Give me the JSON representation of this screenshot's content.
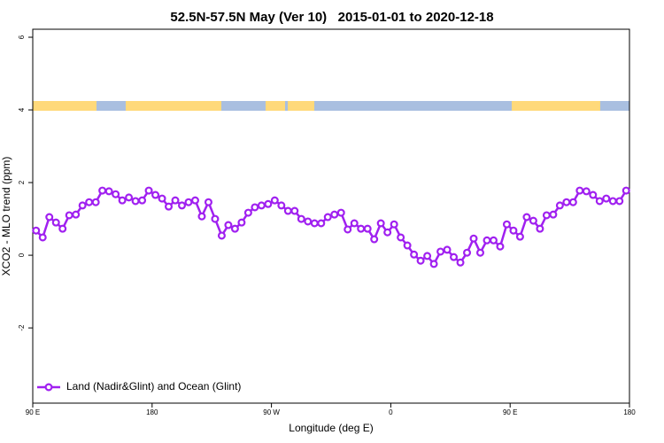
{
  "chart_data": {
    "type": "line",
    "title": "52.5N-57.5N May (Ver 10)   2015-01-01 to 2020-12-18",
    "x_label": "Longitude (deg E)",
    "y_label": "XCO2 - MLO trend (ppm)",
    "x": [
      92.5,
      97.5,
      102.5,
      107.5,
      112.5,
      117.5,
      122.5,
      127.5,
      132.5,
      137.5,
      142.5,
      147.5,
      152.5,
      157.5,
      162.5,
      167.5,
      172.5,
      177.5,
      182.5,
      187.5,
      192.5,
      197.5,
      202.5,
      207.5,
      212.5,
      217.5,
      222.5,
      227.5,
      232.5,
      237.5,
      242.5,
      247.5,
      252.5,
      257.5,
      262.5,
      267.5,
      272.5,
      277.5,
      282.5,
      287.5,
      292.5,
      297.5,
      302.5,
      307.5,
      312.5,
      317.5,
      322.5,
      327.5,
      332.5,
      337.5,
      342.5,
      347.5,
      352.5,
      357.5,
      362.5,
      367.5,
      372.5,
      377.5,
      382.5,
      387.5,
      392.5,
      397.5,
      402.5,
      407.5,
      412.5,
      417.5,
      422.5,
      427.5,
      432.5,
      437.5,
      442.5,
      447.5,
      452.5,
      457.5,
      462.5,
      467.5,
      472.5,
      477.5,
      482.5,
      487.5,
      492.5,
      497.5,
      502.5,
      507.5,
      512.5,
      517.5,
      522.5,
      527.5,
      532.5,
      537.5
    ],
    "series": [
      {
        "name": "Land (Nadir&Glint) and Ocean (Glint)",
        "color": "#a020f0",
        "values": [
          0.68,
          0.49,
          1.05,
          0.9,
          0.73,
          1.1,
          1.12,
          1.37,
          1.46,
          1.46,
          1.78,
          1.76,
          1.68,
          1.51,
          1.59,
          1.49,
          1.51,
          1.78,
          1.66,
          1.56,
          1.34,
          1.51,
          1.37,
          1.46,
          1.51,
          1.07,
          1.46,
          1.0,
          0.54,
          0.83,
          0.73,
          0.9,
          1.17,
          1.32,
          1.37,
          1.41,
          1.51,
          1.37,
          1.22,
          1.22,
          1.0,
          0.93,
          0.88,
          0.88,
          1.05,
          1.12,
          1.17,
          0.71,
          0.88,
          0.73,
          0.73,
          0.44,
          0.88,
          0.63,
          0.85,
          0.49,
          0.27,
          0.02,
          -0.15,
          -0.02,
          -0.24,
          0.1,
          0.15,
          -0.05,
          -0.2,
          0.07,
          0.46,
          0.07,
          0.41,
          0.41,
          0.24,
          0.85,
          0.68,
          0.51,
          1.05,
          0.95,
          0.73,
          1.1,
          1.12,
          1.37,
          1.46,
          1.46,
          1.78,
          1.76,
          1.66,
          1.49,
          1.56,
          1.49,
          1.49,
          1.78
        ]
      }
    ],
    "xlim": [
      90,
      540
    ],
    "xticks": [
      {
        "value": 90,
        "label": "90 E"
      },
      180,
      {
        "value": 270,
        "label": "90 W"
      },
      {
        "value": 360,
        "label": "0"
      },
      {
        "value": 450,
        "label": "90 E"
      },
      {
        "value": 540,
        "label": "180"
      }
    ],
    "ylim": [
      -4.07,
      6.22
    ],
    "yticks": [
      -2,
      0,
      2,
      4,
      6
    ],
    "grid": false,
    "legend": "bottom-left"
  }
}
